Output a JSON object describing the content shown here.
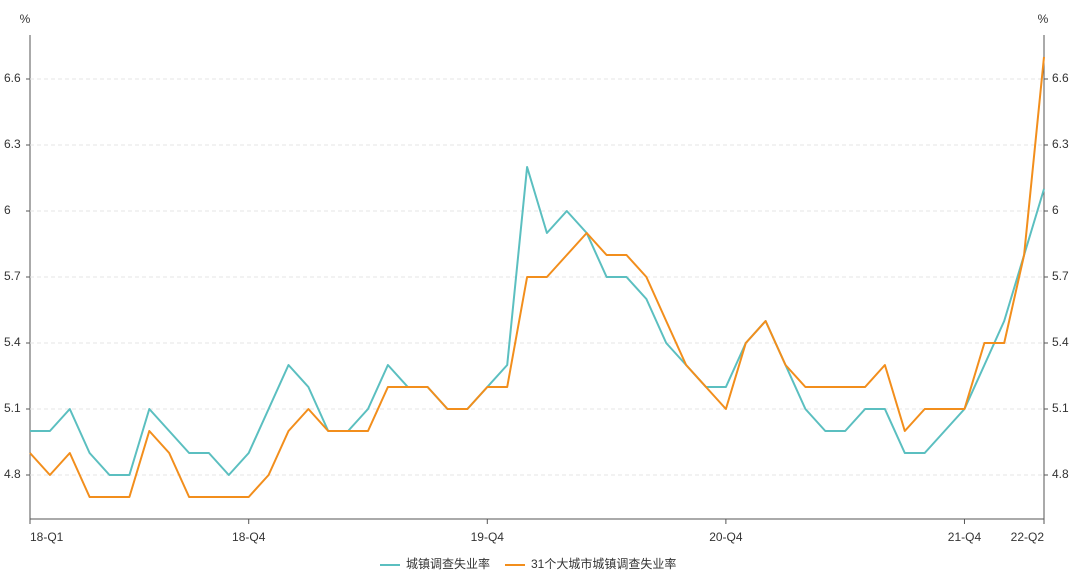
{
  "chart_data": {
    "type": "line",
    "y_label": "%",
    "categories": [
      "18-Q1",
      null,
      null,
      null,
      null,
      null,
      null,
      null,
      null,
      null,
      null,
      "18-Q4",
      null,
      null,
      null,
      null,
      null,
      null,
      null,
      null,
      null,
      null,
      null,
      "19-Q4",
      null,
      null,
      null,
      null,
      null,
      null,
      null,
      null,
      null,
      null,
      null,
      "20-Q4",
      null,
      null,
      null,
      null,
      null,
      null,
      null,
      null,
      null,
      null,
      null,
      "21-Q4",
      null,
      null,
      null,
      "22-Q2"
    ],
    "series": [
      {
        "name": "城镇调查失业率",
        "color": "#5bbfc0",
        "values": [
          5.0,
          5.0,
          5.1,
          4.9,
          4.8,
          4.8,
          5.1,
          5.0,
          4.9,
          4.9,
          4.8,
          4.9,
          5.1,
          5.3,
          5.2,
          5.0,
          5.0,
          5.1,
          5.3,
          5.2,
          5.2,
          5.1,
          5.1,
          5.2,
          5.3,
          6.2,
          5.9,
          6.0,
          5.9,
          5.7,
          5.7,
          5.6,
          5.4,
          5.3,
          5.2,
          5.2,
          5.4,
          5.5,
          5.3,
          5.1,
          5.0,
          5.0,
          5.1,
          5.1,
          4.9,
          4.9,
          5.0,
          5.1,
          5.3,
          5.5,
          5.8,
          6.1
        ]
      },
      {
        "name": "31个大城市城镇调查失业率",
        "color": "#f28e1c",
        "values": [
          4.9,
          4.8,
          4.9,
          4.7,
          4.7,
          4.7,
          5.0,
          4.9,
          4.7,
          4.7,
          4.7,
          4.7,
          4.8,
          5.0,
          5.1,
          5.0,
          5.0,
          5.0,
          5.2,
          5.2,
          5.2,
          5.1,
          5.1,
          5.2,
          5.2,
          5.7,
          5.7,
          5.8,
          5.9,
          5.8,
          5.8,
          5.7,
          5.5,
          5.3,
          5.2,
          5.1,
          5.4,
          5.5,
          5.3,
          5.2,
          5.2,
          5.2,
          5.2,
          5.3,
          5.0,
          5.1,
          5.1,
          5.1,
          5.4,
          5.4,
          5.8,
          6.7
        ]
      }
    ],
    "ylim": [
      4.6,
      6.8
    ],
    "yticks": [
      4.8,
      5.1,
      5.4,
      5.7,
      6,
      6.3,
      6.6
    ],
    "grid": true,
    "legend": "bottom"
  }
}
